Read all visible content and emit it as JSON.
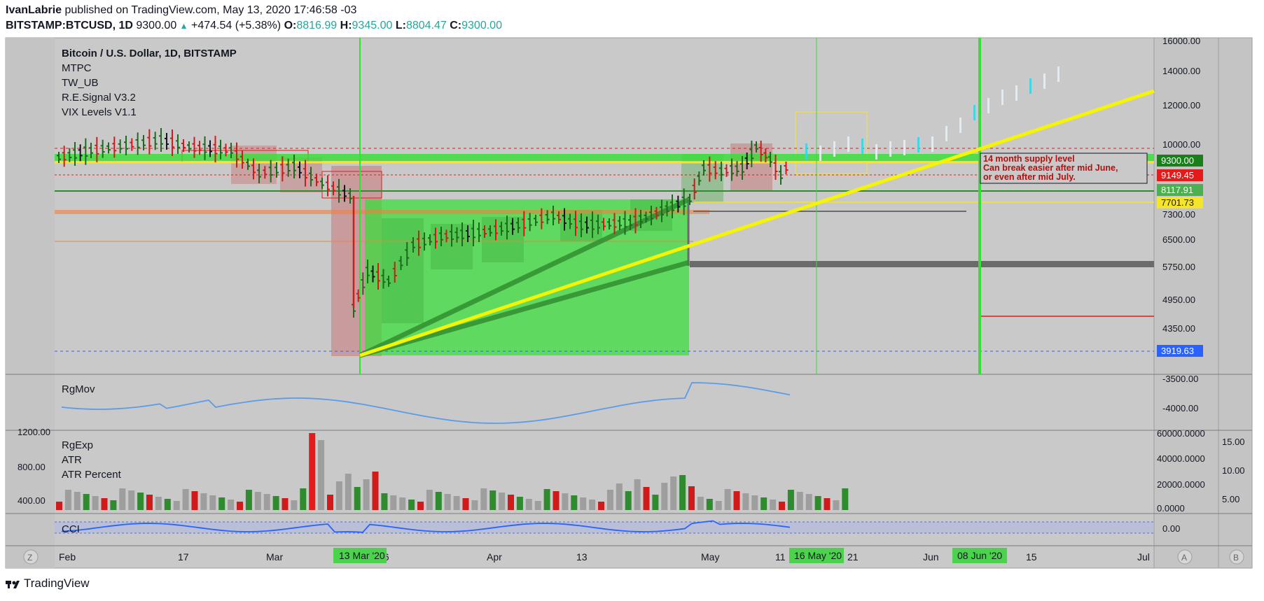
{
  "header": {
    "author": "IvanLabrie",
    "published": "published on TradingView.com, May 13, 2020 17:46:58 -03",
    "symbol": "BITSTAMP:BTCUSD, 1D",
    "last": "9300.00",
    "change": "+474.54 (+5.38%)",
    "o_label": "O:",
    "o": "8816.99",
    "h_label": "H:",
    "h": "9345.00",
    "l_label": "L:",
    "l": "8804.47",
    "c_label": "C:",
    "c": "9300.00"
  },
  "legend": {
    "title": "Bitcoin / U.S. Dollar, 1D, BITSTAMP",
    "indicators": [
      "MTPC",
      "TW_UB",
      "R.E.Signal V3.2",
      "VIX Levels V1.1"
    ]
  },
  "panes": {
    "rgmov": "RgMov",
    "rgexp": [
      "RgExp",
      "ATR",
      "ATR Percent"
    ],
    "cci": "CCI"
  },
  "annotation": {
    "lines": [
      "14 month supply level",
      "Can break easier after mid June,",
      "or even after mid July."
    ]
  },
  "price_axis": {
    "ticks": [
      "16000.00",
      "14000.00",
      "12000.00",
      "10000.00",
      "7300.00",
      "6500.00",
      "5750.00",
      "4950.00",
      "4350.00"
    ],
    "badges": [
      {
        "text": "9300.00",
        "color": "#1a7f1a"
      },
      {
        "text": "9149.45",
        "color": "#e31b1b"
      },
      {
        "text": "8117.91",
        "color": "#4caf50"
      },
      {
        "text": "7701.73",
        "color": "#f5e52a"
      },
      {
        "text": "3919.63",
        "color": "#2962ff"
      }
    ]
  },
  "rgmov_axis": [
    "-3500.00",
    "-4000.00"
  ],
  "rgexp_axis_left": [
    "1200.00",
    "800.00",
    "400.00"
  ],
  "rgexp_axis_mid": [
    "60000.0000",
    "40000.0000",
    "20000.0000",
    "0.0000"
  ],
  "rgexp_axis_right": [
    "15.00",
    "10.00",
    "5.00"
  ],
  "cci_axis": [
    "0.00"
  ],
  "time_axis": {
    "labels": [
      "Feb",
      "17",
      "Mar",
      "16",
      "Apr",
      "13",
      "May",
      "11",
      "21",
      "Jun",
      "15",
      "Jul"
    ],
    "highlights": [
      "13 Mar '20",
      "16 May '20",
      "08 Jun '20"
    ]
  },
  "bottom_buttons": [
    "Z",
    "A",
    "B"
  ],
  "footer": "TradingView",
  "chart_data": {
    "type": "bar",
    "title": "Bitcoin / U.S. Dollar, 1D, BITSTAMP",
    "xlabel": "",
    "ylabel": "",
    "ylim": [
      3500,
      16500
    ],
    "candles_approx": [
      {
        "x": "Feb",
        "close": 9400
      },
      {
        "x": "17",
        "close": 9900
      },
      {
        "x": "Mar",
        "close": 8600
      },
      {
        "x": "13 Mar '20",
        "close": 5000,
        "low": 3919.63
      },
      {
        "x": "Apr",
        "close": 6800
      },
      {
        "x": "13",
        "close": 6900
      },
      {
        "x": "May",
        "close": 8800
      },
      {
        "x": "11",
        "close": 8600
      },
      {
        "x": "13 May",
        "close": 9300
      }
    ],
    "levels": [
      {
        "name": "9300.00",
        "value": 9300
      },
      {
        "name": "9149.45",
        "value": 9149.45
      },
      {
        "name": "8117.91",
        "value": 8117.91
      },
      {
        "name": "7701.73",
        "value": 7701.73
      },
      {
        "name": "3919.63",
        "value": 3919.63
      }
    ]
  }
}
